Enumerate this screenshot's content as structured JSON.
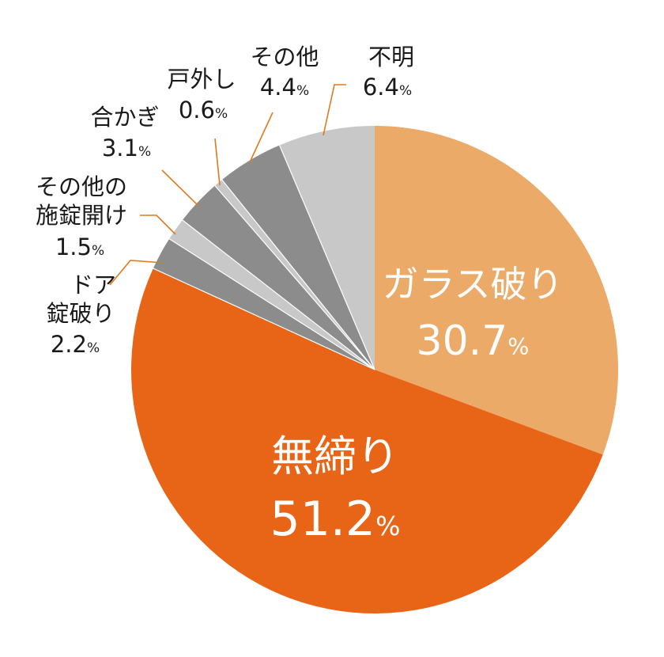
{
  "colors": {
    "glass": "#ecaa68",
    "unlocked": "#e86517",
    "dark_gray": "#8c8c8c",
    "light_gray": "#c8c8c8",
    "leader": "#e07a1e",
    "background": "#ffffff"
  },
  "chart_data": {
    "type": "pie",
    "start_angle": "12 o'clock",
    "direction": "clockwise",
    "slices": [
      {
        "label": "ガラス破り",
        "value": 30.7,
        "display": "30.7",
        "unit": "%",
        "color": "#ecaa68",
        "label_position": "inside"
      },
      {
        "label": "無締り",
        "value": 51.2,
        "display": "51.2",
        "unit": "%",
        "color": "#e86517",
        "label_position": "inside"
      },
      {
        "label": "ドア錠破り",
        "label_lines": [
          "ドア",
          "錠破り"
        ],
        "value": 2.2,
        "display": "2.2",
        "unit": "%",
        "color": "#8c8c8c",
        "label_position": "outside"
      },
      {
        "label": "その他の施錠開け",
        "label_lines": [
          "その他の",
          "施錠開け"
        ],
        "value": 1.5,
        "display": "1.5",
        "unit": "%",
        "color": "#c8c8c8",
        "label_position": "outside"
      },
      {
        "label": "合かぎ",
        "label_lines": [
          "合かぎ"
        ],
        "value": 3.1,
        "display": "3.1",
        "unit": "%",
        "color": "#8c8c8c",
        "label_position": "outside"
      },
      {
        "label": "戸外し",
        "label_lines": [
          "戸外し"
        ],
        "value": 0.6,
        "display": "0.6",
        "unit": "%",
        "color": "#c8c8c8",
        "label_position": "outside"
      },
      {
        "label": "その他",
        "label_lines": [
          "その他"
        ],
        "value": 4.4,
        "display": "4.4",
        "unit": "%",
        "color": "#8c8c8c",
        "label_position": "outside"
      },
      {
        "label": "不明",
        "label_lines": [
          "不明"
        ],
        "value": 6.4,
        "display": "6.4",
        "unit": "%",
        "color": "#c8c8c8",
        "label_position": "outside"
      }
    ]
  }
}
